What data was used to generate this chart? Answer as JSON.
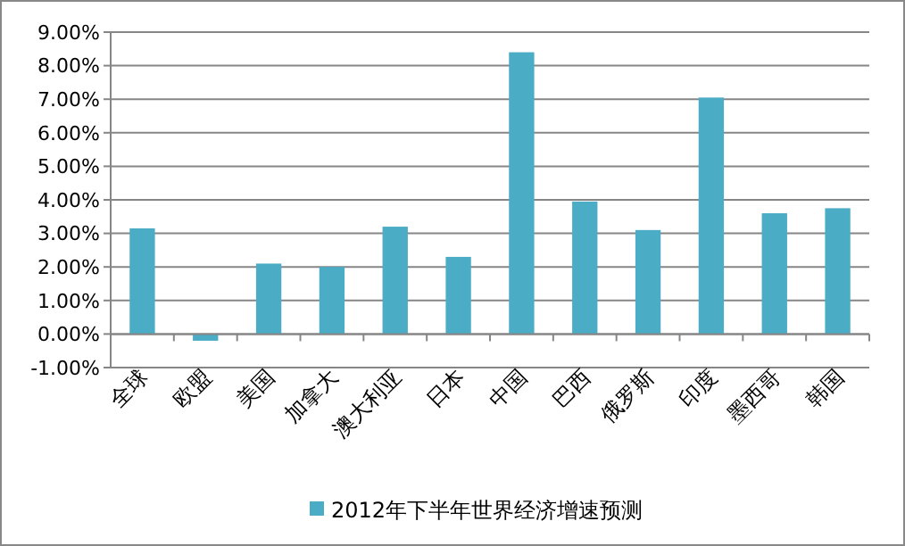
{
  "chart_data": {
    "type": "bar",
    "categories": [
      "全球",
      "欧盟",
      "美国",
      "加拿大",
      "澳大利亚",
      "日本",
      "中国",
      "巴西",
      "俄罗斯",
      "印度",
      "墨西哥",
      "韩国"
    ],
    "series": [
      {
        "name": "2012年下半年世界经济增速预测",
        "color": "#4bacc6",
        "values": [
          3.15,
          -0.2,
          2.1,
          2.0,
          3.2,
          2.3,
          8.4,
          3.95,
          3.1,
          7.05,
          3.6,
          3.75
        ]
      }
    ],
    "ylim": [
      -1,
      9
    ],
    "yticks": [
      {
        "value": -1,
        "label": "-1.00%"
      },
      {
        "value": 0,
        "label": "0.00%"
      },
      {
        "value": 1,
        "label": "1.00%"
      },
      {
        "value": 2,
        "label": "2.00%"
      },
      {
        "value": 3,
        "label": "3.00%"
      },
      {
        "value": 4,
        "label": "4.00%"
      },
      {
        "value": 5,
        "label": "5.00%"
      },
      {
        "value": 6,
        "label": "6.00%"
      },
      {
        "value": 7,
        "label": "7.00%"
      },
      {
        "value": 8,
        "label": "8.00%"
      },
      {
        "value": 9,
        "label": "9.00%"
      }
    ],
    "grid": "y",
    "legend": "bottom"
  }
}
